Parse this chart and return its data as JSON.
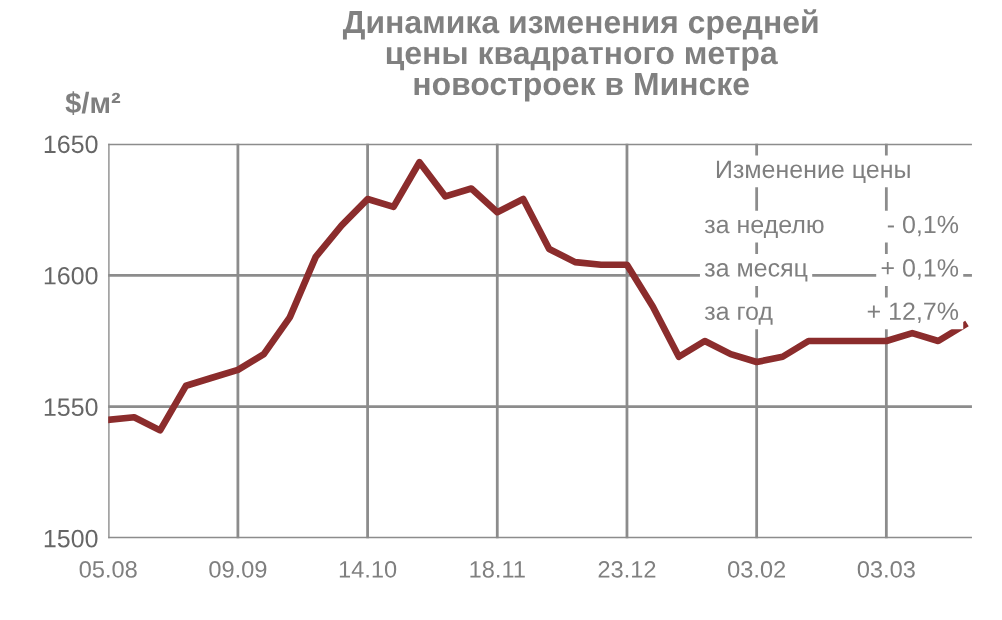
{
  "chart_data": {
    "type": "line",
    "title": "Динамика изменения средней\nцены квадратного метра\nновостроек в Минске",
    "ylabel": "$/м²",
    "categories": [
      "05.08",
      null,
      null,
      null,
      null,
      "09.09",
      null,
      null,
      null,
      null,
      "14.10",
      null,
      null,
      null,
      null,
      "18.11",
      null,
      null,
      null,
      null,
      "23.12",
      null,
      null,
      null,
      null,
      "03.02",
      null,
      null,
      null,
      null,
      "03.03",
      null,
      null,
      null
    ],
    "series": [
      {
        "color": "#8b2c2c",
        "values": [
          1545,
          1546,
          1541,
          1558,
          1561,
          1564,
          1570,
          1584,
          1607,
          1619,
          1629,
          1626,
          1643,
          1630,
          1633,
          1624,
          1629,
          1610,
          1605,
          1604,
          1604,
          1588,
          1569,
          1575,
          1570,
          1567,
          1569,
          1575,
          1575,
          1575,
          1575,
          1578,
          1575,
          1581
        ]
      }
    ],
    "ylim": [
      1500,
      1650
    ],
    "yticks": [
      1500,
      1550,
      1600,
      1650
    ],
    "grid": true,
    "marker": "none",
    "line_style": "solid",
    "annotations": [
      "Изменение цены",
      "за неделю",
      "- 0,1%",
      "за месяц",
      "+ 0,1%",
      "за год",
      "+ 12,7%"
    ]
  }
}
